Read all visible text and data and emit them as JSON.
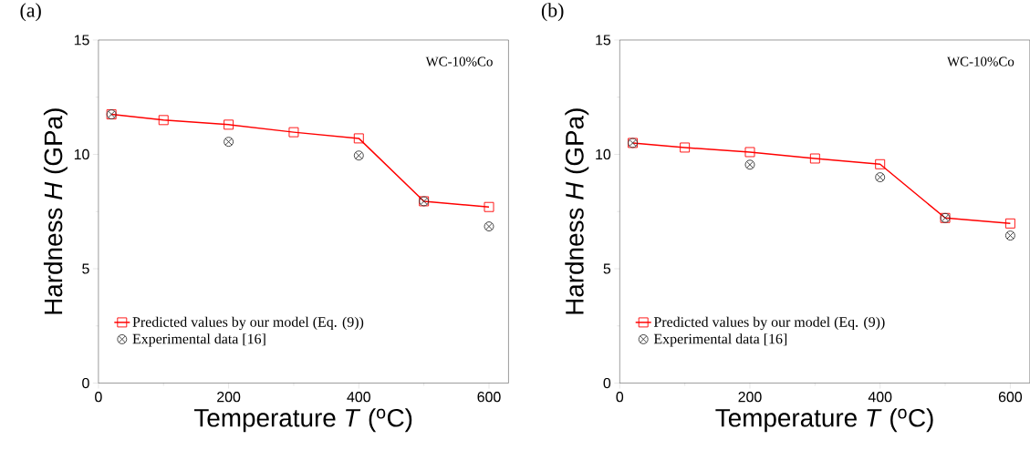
{
  "chart_data": [
    {
      "type": "line",
      "title": "(a)",
      "xlabel": "Temperature *T* ($^{o}$C)",
      "ylabel": "Hardness *H* (GPa)",
      "annotations": [
        "WC-10%Co"
      ],
      "xlim": [
        0,
        630
      ],
      "ylim": [
        0,
        15
      ],
      "xticks": [
        0,
        200,
        400,
        600
      ],
      "yticks": [
        0,
        5,
        10,
        15
      ],
      "legend": "bottom left",
      "series": [
        {
          "name": "Predicted values by our model (Eq. (9))",
          "marker": "square",
          "color": "#ff0000",
          "x": [
            20,
            100,
            200,
            300,
            400,
            500,
            600
          ],
          "values": [
            11.75,
            11.5,
            11.3,
            10.97,
            10.7,
            7.95,
            7.7
          ]
        },
        {
          "name": "Experimental data [16]",
          "type": "scatter",
          "marker": "cross",
          "color": "#333333",
          "x": [
            20,
            200,
            400,
            500,
            600
          ],
          "values": [
            11.75,
            10.55,
            9.95,
            7.95,
            6.85
          ]
        }
      ]
    },
    {
      "type": "line",
      "title": "(b)",
      "xlabel": "Temperature *T* ($^{o}$C)",
      "ylabel": "Hardness *H* (GPa)",
      "annotations": [
        "WC-10%Co"
      ],
      "xlim": [
        0,
        630
      ],
      "ylim": [
        0,
        15
      ],
      "xticks": [
        0,
        200,
        400,
        600
      ],
      "yticks": [
        0,
        5,
        10,
        15
      ],
      "legend": "bottom left",
      "series": [
        {
          "name": "Predicted values by our model (Eq. (9))",
          "marker": "square",
          "color": "#ff0000",
          "x": [
            20,
            100,
            200,
            300,
            400,
            500,
            600
          ],
          "values": [
            10.5,
            10.3,
            10.1,
            9.82,
            9.57,
            7.22,
            6.98
          ]
        },
        {
          "name": "Experimental data [16]",
          "type": "scatter",
          "marker": "cross",
          "color": "#333333",
          "x": [
            20,
            200,
            400,
            500,
            600
          ],
          "values": [
            10.5,
            9.55,
            9.0,
            7.22,
            6.45
          ]
        }
      ]
    }
  ]
}
